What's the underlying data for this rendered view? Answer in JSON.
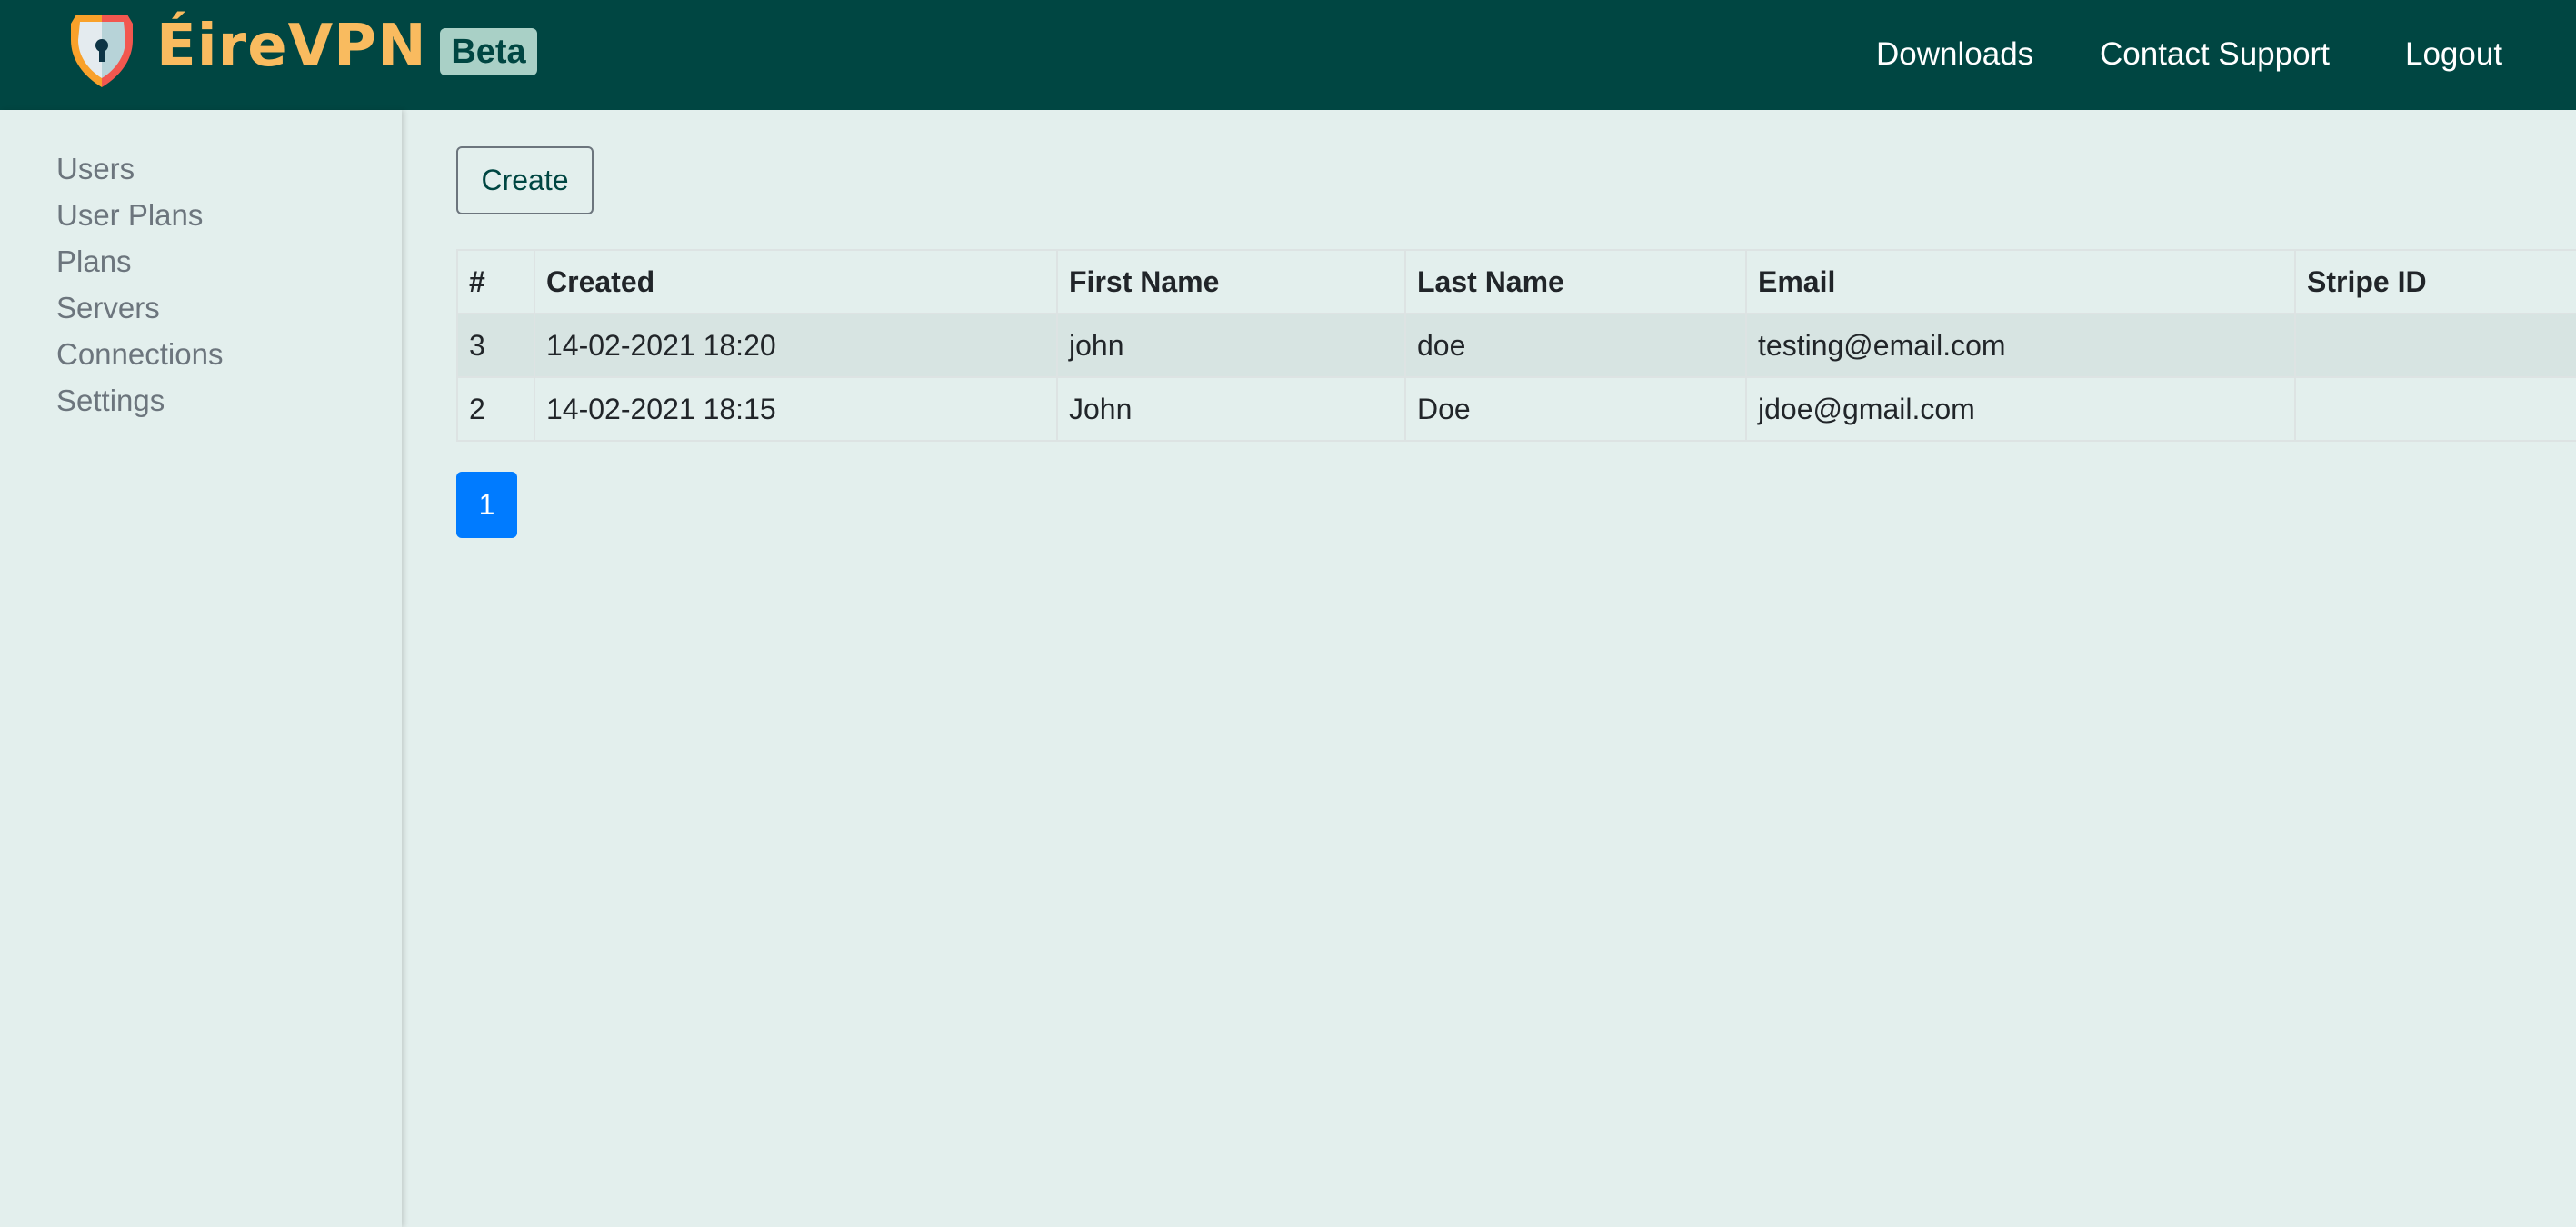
{
  "header": {
    "brand": "ÉireVPN",
    "badge": "Beta",
    "nav": [
      "Downloads",
      "Contact Support",
      "Logout"
    ],
    "colors": {
      "bar": "#004642",
      "brand": "#f9bb5f"
    }
  },
  "sidebar": {
    "items": [
      "Users",
      "User Plans",
      "Plans",
      "Servers",
      "Connections",
      "Settings"
    ]
  },
  "main": {
    "create_label": "Create",
    "table": {
      "columns": [
        "#",
        "Created",
        "First Name",
        "Last Name",
        "Email",
        "Stripe ID"
      ],
      "rows": [
        [
          "3",
          "14-02-2021 18:20",
          "john",
          "doe",
          "testing@email.com",
          ""
        ],
        [
          "2",
          "14-02-2021 18:15",
          "John",
          "Doe",
          "jdoe@gmail.com",
          ""
        ]
      ]
    },
    "pagination": {
      "current": "1",
      "color": "#007bff"
    }
  }
}
